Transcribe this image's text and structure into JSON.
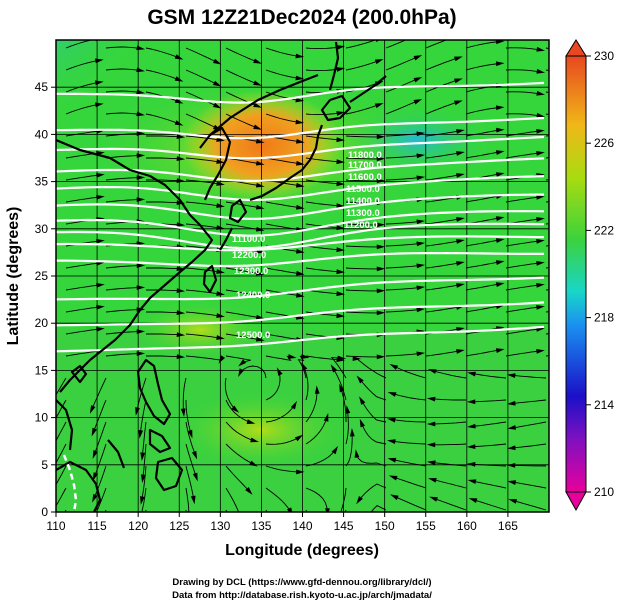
{
  "title": "GSM 12Z21Dec2024 (200.0hPa)",
  "xlabel": "Longitude (degrees)",
  "ylabel": "Latitude  (degrees)",
  "credit_line1": "Drawing by DCL (https://www.gfd-dennou.org/library/dcl/)",
  "credit_line2": "Data from http://database.rish.kyoto-u.ac.jp/arch/jmadata/",
  "map": {
    "lon_range": [
      110,
      170
    ],
    "lat_range": [
      0,
      50
    ],
    "grid_lon": [
      110,
      115,
      120,
      125,
      130,
      135,
      140,
      145,
      150,
      155,
      160,
      165,
      170
    ],
    "grid_lat": [
      0,
      5,
      10,
      15,
      20,
      25,
      30,
      35,
      40,
      45,
      50
    ],
    "lon_ticks": [
      "110",
      "115",
      "120",
      "125",
      "130",
      "135",
      "140",
      "145",
      "150",
      "155",
      "160",
      "165"
    ],
    "lat_ticks": [
      "0",
      "5",
      "10",
      "15",
      "20",
      "25",
      "30",
      "35",
      "40",
      "45"
    ],
    "field": "temperature (K)",
    "colors": {
      "coast": "#000000",
      "contour": "#ffffff",
      "streamline": "#000000",
      "background": "#35d63c",
      "warm_core": "#f08a1e",
      "cool_corner": "#2a8ff0"
    }
  },
  "colorbar": {
    "min": 210,
    "max": 230,
    "labels": [
      "210",
      "214",
      "218",
      "222",
      "226",
      "230"
    ],
    "stops": [
      "#e8009c",
      "#1a10c8",
      "#1a8ff0",
      "#18d6c8",
      "#3cd23c",
      "#a8dc10",
      "#f0b818",
      "#e84820"
    ]
  },
  "contours": {
    "labels": [
      "11800.0",
      "11700.0",
      "11600.0",
      "11500.0",
      "11400.0",
      "11300.0",
      "11200.0",
      "11100.0",
      "12200.0",
      "12300.0",
      "12400.0",
      "12500.0"
    ]
  }
}
